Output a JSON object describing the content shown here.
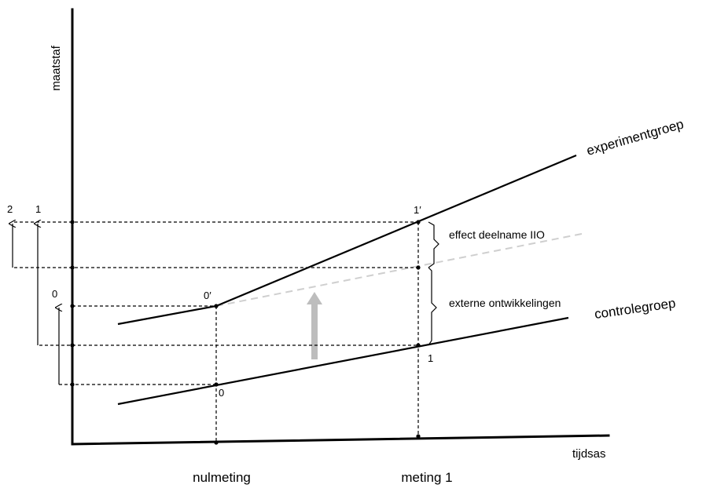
{
  "axes": {
    "y_label": "maatstaf",
    "x_label": "tijdsas",
    "x_categories": [
      "nulmeting",
      "meting 1"
    ]
  },
  "groups": {
    "experiment": "experimentgroep",
    "control": "controlegroep"
  },
  "annotations": {
    "effect": "effect deelname IIO",
    "external": "externe ontwikkelingen"
  },
  "point_labels": {
    "exp_start": "0′",
    "exp_end": "1′",
    "ctrl_start": "0",
    "ctrl_end": "1"
  },
  "level_labels": {
    "level_0": "0",
    "level_1": "1",
    "level_2": "2"
  },
  "colors": {
    "line": "#000000",
    "counterfactual": "#cfcfcf",
    "shift_arrow": "#bdbdbd"
  }
}
